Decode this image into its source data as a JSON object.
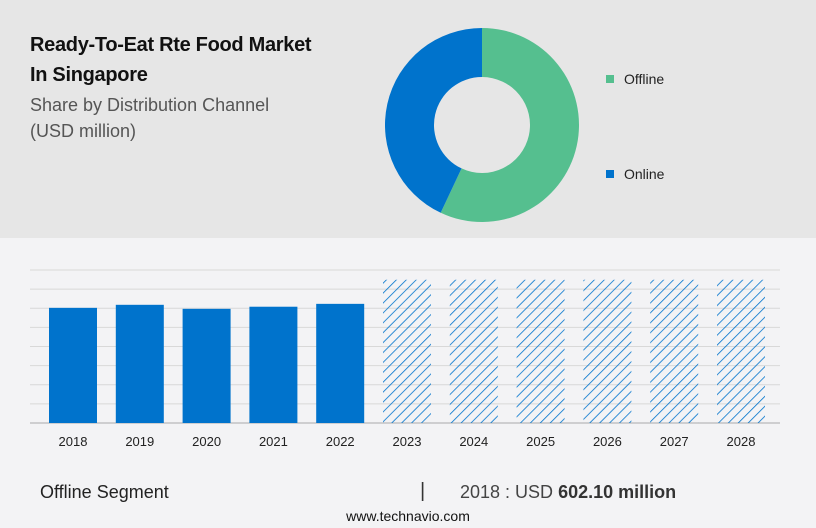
{
  "header": {
    "title_line1": "Ready-To-Eat Rte Food Market",
    "title_line2": "In Singapore",
    "subtitle_line1": "Share by Distribution Channel",
    "subtitle_line2": "(USD million)"
  },
  "chart_data": [
    {
      "type": "pie",
      "variant": "donut",
      "labels": [
        "Offline",
        "Online"
      ],
      "values": [
        57,
        43
      ],
      "colors": [
        "#55bf8f",
        "#0073cc"
      ],
      "legend": "right"
    },
    {
      "type": "bar",
      "categories": [
        "2018",
        "2019",
        "2020",
        "2021",
        "2022",
        "2023",
        "2024",
        "2025",
        "2026",
        "2027",
        "2028"
      ],
      "values": [
        602.1,
        618,
        597,
        608,
        623,
        null,
        null,
        null,
        null,
        null,
        null
      ],
      "forecast_categories": [
        "2023",
        "2024",
        "2025",
        "2026",
        "2027",
        "2028"
      ],
      "forecast_display_value": 749,
      "ylim": [
        0,
        800
      ],
      "grid": true,
      "colors": {
        "actual": "#0073cc",
        "forecast_hatch": "#0073cc"
      }
    }
  ],
  "footer": {
    "segment": "Offline Segment",
    "separator": "|",
    "year_label": "2018 : USD",
    "value": "602.10 million",
    "website": "www.technavio.com"
  }
}
